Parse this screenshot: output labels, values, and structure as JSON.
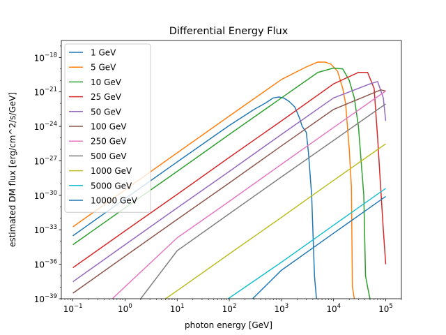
{
  "chart_data": {
    "type": "line",
    "title": "Differential Energy Flux",
    "xlabel": "photon energy [GeV]",
    "ylabel": "estimated DM flux [erg/cm^2/s/GeV]",
    "xscale": "log",
    "yscale": "log",
    "xlim": [
      0.06,
      200000
    ],
    "ylim": [
      1e-39,
      3e-17
    ],
    "x_ticks": [
      {
        "value": 0.1,
        "base": "10",
        "exp": "−1"
      },
      {
        "value": 1,
        "base": "10",
        "exp": "0"
      },
      {
        "value": 10,
        "base": "10",
        "exp": "1"
      },
      {
        "value": 100,
        "base": "10",
        "exp": "2"
      },
      {
        "value": 1000,
        "base": "10",
        "exp": "3"
      },
      {
        "value": 10000,
        "base": "10",
        "exp": "4"
      },
      {
        "value": 100000,
        "base": "10",
        "exp": "5"
      }
    ],
    "y_ticks": [
      {
        "value": 1e-18,
        "base": "10",
        "exp": "−18"
      },
      {
        "value": 1e-21,
        "base": "10",
        "exp": "−21"
      },
      {
        "value": 1e-24,
        "base": "10",
        "exp": "−24"
      },
      {
        "value": 1e-27,
        "base": "10",
        "exp": "−27"
      },
      {
        "value": 1e-30,
        "base": "10",
        "exp": "−30"
      },
      {
        "value": 1e-33,
        "base": "10",
        "exp": "−33"
      },
      {
        "value": 1e-36,
        "base": "10",
        "exp": "−36"
      },
      {
        "value": 1e-39,
        "base": "10",
        "exp": "−39"
      }
    ],
    "grid": false,
    "legend_position": "top-left",
    "series": [
      {
        "name": "1 GeV",
        "color": "#1f77b4",
        "points": [
          [
            0.1,
            3e-34
          ],
          [
            1,
            5e-31
          ],
          [
            10,
            8e-28
          ],
          [
            100,
            1.2e-24
          ],
          [
            300,
            3e-23
          ],
          [
            500,
            1.1e-22
          ],
          [
            700,
            3e-22
          ],
          [
            900,
            3.6e-22
          ],
          [
            1100,
            3e-22
          ],
          [
            1400,
            1.5e-22
          ],
          [
            1800,
            5e-23
          ],
          [
            2200,
            6e-24
          ],
          [
            2500,
            1e-24
          ],
          [
            3000,
            3e-25
          ],
          [
            3300,
            5e-27
          ],
          [
            3800,
            1e-30
          ],
          [
            4300,
            1e-37
          ],
          [
            4700,
            1e-39
          ]
        ]
      },
      {
        "name": "5 GeV",
        "color": "#ff7f0e",
        "points": [
          [
            0.1,
            1.8e-33
          ],
          [
            1,
            3e-30
          ],
          [
            10,
            5e-27
          ],
          [
            100,
            8e-24
          ],
          [
            1000,
            1.2e-20
          ],
          [
            3000,
            1.5e-19
          ],
          [
            5000,
            4e-19
          ],
          [
            7000,
            3.9e-19
          ],
          [
            9000,
            2.5e-19
          ],
          [
            12000,
            6e-20
          ],
          [
            15000,
            2e-21
          ],
          [
            17000,
            1e-22
          ],
          [
            20000,
            1e-26
          ],
          [
            22000,
            5e-30
          ],
          [
            23000,
            1e-38
          ],
          [
            25000,
            1e-39
          ]
        ]
      },
      {
        "name": "10 GeV",
        "color": "#2ca02c",
        "points": [
          [
            0.1,
            5e-35
          ],
          [
            1,
            8e-32
          ],
          [
            10,
            1.2e-28
          ],
          [
            100,
            2e-25
          ],
          [
            1000,
            3e-22
          ],
          [
            5000,
            5e-20
          ],
          [
            10000,
            1.2e-19
          ],
          [
            15000,
            1e-19
          ],
          [
            20000,
            1e-20
          ],
          [
            25000,
            3e-22
          ],
          [
            30000,
            1e-24
          ],
          [
            38000,
            1e-30
          ],
          [
            41000,
            1e-37
          ],
          [
            45000,
            1e-38
          ],
          [
            50000,
            1e-39
          ]
        ]
      },
      {
        "name": "25 GeV",
        "color": "#d62728",
        "points": [
          [
            0.1,
            5e-37
          ],
          [
            1,
            8e-34
          ],
          [
            10,
            1.2e-30
          ],
          [
            100,
            2e-27
          ],
          [
            1000,
            3e-24
          ],
          [
            10000,
            5e-21
          ],
          [
            30000,
            5e-20
          ],
          [
            45000,
            5e-20
          ],
          [
            60000,
            2e-21
          ],
          [
            70000,
            1e-25
          ],
          [
            80000,
            5e-30
          ],
          [
            90000,
            1e-33
          ],
          [
            100000,
            1e-36
          ]
        ]
      },
      {
        "name": "50 GeV",
        "color": "#9467bd",
        "points": [
          [
            0.1,
            3e-38
          ],
          [
            1,
            5e-35
          ],
          [
            10,
            8e-32
          ],
          [
            100,
            1.2e-28
          ],
          [
            1000,
            2e-25
          ],
          [
            10000,
            3e-22
          ],
          [
            50000,
            5e-21
          ],
          [
            70000,
            8e-21
          ],
          [
            90000,
            3e-22
          ],
          [
            100000,
            3e-24
          ]
        ]
      },
      {
        "name": "100 GeV",
        "color": "#8c564b",
        "points": [
          [
            0.1,
            3e-39
          ],
          [
            1,
            5e-36
          ],
          [
            10,
            8e-33
          ],
          [
            100,
            1.2e-29
          ],
          [
            1000,
            2e-26
          ],
          [
            10000,
            3e-23
          ],
          [
            80000,
            1.5e-21
          ],
          [
            100000,
            1.2e-21
          ]
        ]
      },
      {
        "name": "250 GeV",
        "color": "#e377c2",
        "points": [
          [
            0.57,
            1e-39
          ],
          [
            10,
            2e-34
          ],
          [
            100,
            3e-31
          ],
          [
            1000,
            5e-28
          ],
          [
            10000,
            8e-25
          ],
          [
            100000,
            1.2e-21
          ]
        ]
      },
      {
        "name": "500 GeV",
        "color": "#7f7f7f",
        "points": [
          [
            2,
            1e-39
          ],
          [
            10,
            1.5e-35
          ],
          [
            100,
            2.5e-32
          ],
          [
            1000,
            4e-29
          ],
          [
            10000,
            6e-26
          ],
          [
            100000,
            9e-23
          ]
        ]
      },
      {
        "name": "1000 GeV",
        "color": "#bcbd22",
        "points": [
          [
            6,
            1e-39
          ],
          [
            10,
            5e-39
          ],
          [
            100,
            8e-36
          ],
          [
            1000,
            1.2e-32
          ],
          [
            10000,
            2e-29
          ],
          [
            100000,
            3e-26
          ]
        ]
      },
      {
        "name": "5000 GeV",
        "color": "#17becf",
        "points": [
          [
            95,
            1e-39
          ],
          [
            1000,
            1.5e-36
          ],
          [
            10000,
            2.5e-33
          ],
          [
            100000,
            4e-30
          ]
        ]
      },
      {
        "name": "10000 GeV",
        "color": "#1f77b4",
        "points": [
          [
            280,
            1e-39
          ],
          [
            1000,
            3e-37
          ],
          [
            10000,
            5e-34
          ],
          [
            100000,
            8e-31
          ]
        ]
      }
    ]
  }
}
